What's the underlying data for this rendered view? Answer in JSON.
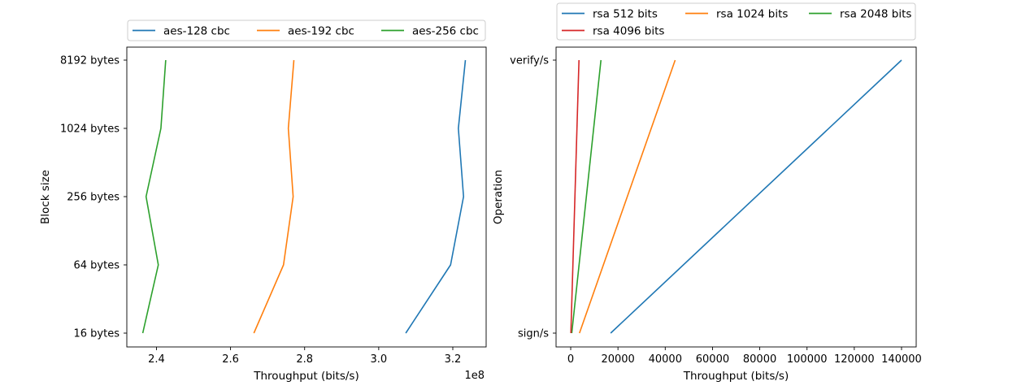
{
  "chart_data": [
    {
      "type": "line",
      "orientation": "horizontal",
      "xlabel": "Throughput (bits/s)",
      "ylabel": "Block size",
      "x_offset_text": "1e8",
      "xlim": [
        232000000.0,
        329000000.0
      ],
      "xticks": [
        2.4,
        2.6,
        2.8,
        3.0,
        3.2
      ],
      "categories": [
        "16 bytes",
        "64 bytes",
        "256 bytes",
        "1024 bytes",
        "8192 bytes"
      ],
      "legend_placement": "top",
      "series": [
        {
          "name": "aes-128 cbc",
          "color": "#1f77b4",
          "values": [
            307300000.0,
            319400000.0,
            322900000.0,
            321500000.0,
            323400000.0
          ]
        },
        {
          "name": "aes-192 cbc",
          "color": "#ff7f0e",
          "values": [
            266300000.0,
            274300000.0,
            276900000.0,
            275600000.0,
            277100000.0
          ]
        },
        {
          "name": "aes-256 cbc",
          "color": "#2ca02c",
          "values": [
            236300000.0,
            240500000.0,
            237200000.0,
            241200000.0,
            242500000.0
          ]
        }
      ]
    },
    {
      "type": "line",
      "orientation": "horizontal",
      "xlabel": "Throughput (bits/s)",
      "ylabel": "Operation",
      "xlim": [
        -6200,
        146200
      ],
      "xticks": [
        0,
        20000,
        40000,
        60000,
        80000,
        100000,
        120000,
        140000
      ],
      "categories": [
        "sign/s",
        "verify/s"
      ],
      "legend_placement": "top",
      "series": [
        {
          "name": "rsa 512 bits",
          "color": "#1f77b4",
          "values": [
            16900,
            140000
          ]
        },
        {
          "name": "rsa 1024 bits",
          "color": "#ff7f0e",
          "values": [
            3700,
            44200
          ]
        },
        {
          "name": "rsa 2048 bits",
          "color": "#2ca02c",
          "values": [
            450,
            12800
          ]
        },
        {
          "name": "rsa 4096 bits",
          "color": "#d62728",
          "values": [
            70,
            3500
          ]
        }
      ]
    }
  ]
}
